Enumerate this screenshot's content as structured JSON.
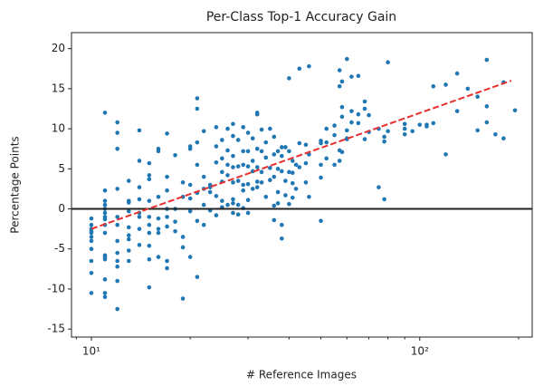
{
  "chart_data": {
    "type": "scatter",
    "title": "Per-Class Top-1 Accuracy Gain",
    "xlabel": "# Reference Images",
    "ylabel": "Percentage Points",
    "xscale": "log",
    "xlim": [
      8.7,
      220
    ],
    "ylim": [
      -16,
      22
    ],
    "xticks": [
      {
        "value": 10,
        "label": "10¹"
      },
      {
        "value": 100,
        "label": "10²"
      }
    ],
    "xminorticks": [
      9,
      20,
      30,
      40,
      50,
      60,
      70,
      80,
      90,
      200
    ],
    "yticks": [
      -15,
      -10,
      -5,
      0,
      5,
      10,
      15,
      20
    ],
    "color": "#1f77b4",
    "hline": {
      "y": 0,
      "color": "#222222"
    },
    "fit_line": {
      "x": [
        10,
        190
      ],
      "y": [
        -2.5,
        16
      ],
      "color": "#e8312f"
    },
    "x": [
      10,
      10,
      10,
      10,
      10,
      10,
      10,
      10,
      10,
      10,
      10,
      11,
      11,
      11,
      11,
      11,
      11,
      11,
      11,
      11,
      11,
      11,
      11,
      11,
      11,
      11,
      11,
      12,
      12,
      12,
      12,
      12,
      12,
      12,
      12,
      12,
      12,
      12,
      12,
      13,
      13,
      13,
      13,
      13,
      13,
      13,
      13,
      13,
      14,
      14,
      14,
      14,
      14,
      14,
      14,
      14,
      15,
      15,
      15,
      15,
      15,
      15,
      15,
      15,
      15,
      15,
      16,
      16,
      16,
      16,
      16,
      16,
      16,
      17,
      17,
      17,
      17,
      17,
      17,
      17,
      17,
      18,
      18,
      18,
      18,
      19,
      19,
      19,
      19,
      19,
      20,
      20,
      20,
      20,
      20,
      20,
      21,
      21,
      21,
      21,
      21,
      21,
      21,
      22,
      22,
      22,
      22,
      22,
      23,
      23,
      23,
      23,
      24,
      24,
      24,
      24,
      24,
      25,
      25,
      25,
      25,
      25,
      25,
      26,
      26,
      26,
      26,
      26,
      27,
      27,
      27,
      27,
      27,
      27,
      27,
      27,
      28,
      28,
      28,
      28,
      28,
      29,
      29,
      29,
      29,
      29,
      29,
      30,
      30,
      30,
      30,
      30,
      30,
      31,
      31,
      31,
      31,
      32,
      32,
      32,
      32,
      32,
      32,
      33,
      33,
      33,
      33,
      34,
      34,
      34,
      35,
      35,
      35,
      36,
      36,
      36,
      36,
      36,
      37,
      37,
      37,
      37,
      38,
      38,
      38,
      38,
      38,
      39,
      39,
      39,
      40,
      40,
      40,
      40,
      41,
      41,
      41,
      41,
      42,
      42,
      43,
      43,
      43,
      45,
      45,
      45,
      46,
      46,
      46,
      50,
      50,
      50,
      50,
      50,
      52,
      52,
      52,
      55,
      55,
      55,
      57,
      57,
      57,
      57,
      58,
      58,
      58,
      58,
      60,
      60,
      60,
      60,
      62,
      62,
      62,
      65,
      65,
      65,
      68,
      68,
      68,
      70,
      70,
      75,
      75,
      78,
      78,
      78,
      80,
      80,
      90,
      90,
      90,
      95,
      100,
      105,
      105,
      110,
      110,
      120,
      120,
      130,
      130,
      140,
      150,
      150,
      160,
      160,
      160,
      170,
      180,
      180,
      195
    ],
    "y": [
      -1.2,
      -2.5,
      -3,
      -3.5,
      -4,
      -5,
      -6.5,
      -8,
      -10.5,
      -2,
      -2.8,
      12,
      2.3,
      1,
      0.5,
      -0.5,
      -1.3,
      -2,
      -3,
      -5.8,
      -6.3,
      -8.8,
      -10.5,
      -11,
      -6,
      0,
      -1,
      9.5,
      7.5,
      2.5,
      -1,
      -2,
      -4,
      -6.5,
      -7.2,
      -9,
      -12.5,
      -5.5,
      10.8,
      3.5,
      1,
      -0.3,
      -2.3,
      -3.3,
      -3.8,
      -5.2,
      -6.5,
      0.8,
      9.8,
      6,
      1.2,
      -0.5,
      -1,
      -2.5,
      -4.5,
      2.7,
      4.2,
      5.7,
      1,
      -1,
      -2,
      -3,
      -4.6,
      -6.3,
      -9.8,
      3.7,
      7.2,
      7.5,
      1.5,
      -1.2,
      -2.5,
      -3,
      -6,
      9.4,
      4,
      2.3,
      0,
      -1,
      -6.5,
      -7.4,
      -2.2,
      6.7,
      -1.6,
      -2.8,
      0,
      3.3,
      -3.5,
      -4.8,
      -11.2,
      1.5,
      7.8,
      7.5,
      3,
      1.3,
      -0.3,
      -6,
      13.8,
      12.5,
      8.3,
      2,
      -1.5,
      -8.5,
      5.5,
      9.7,
      4,
      2.5,
      0.5,
      -2,
      3,
      2.7,
      -0.2,
      2.1,
      10.2,
      7.8,
      5.8,
      1.6,
      -0.8,
      8.6,
      6.3,
      4.6,
      3.4,
      1,
      0.2,
      7.3,
      5.5,
      10,
      4.2,
      0.5,
      10.6,
      9.1,
      6.6,
      5.2,
      3.3,
      1.2,
      0.7,
      -0.5,
      8.6,
      5.3,
      3.5,
      0.5,
      -0.7,
      10.2,
      7.2,
      5.5,
      3,
      2.3,
      0.1,
      9.5,
      7.2,
      5.3,
      3.1,
      1.1,
      -0.5,
      8.8,
      6,
      4.7,
      2.5,
      12,
      11.8,
      7.5,
      5.2,
      3.4,
      2.7,
      9.9,
      7.2,
      4.6,
      3.3,
      8.3,
      6.4,
      1.5,
      10,
      5.1,
      3.6,
      9,
      6.8,
      4,
      0.4,
      -1.4,
      7.2,
      5,
      2.1,
      0.7,
      7.7,
      6.6,
      4.7,
      -2,
      -3.7,
      7.7,
      3.5,
      1.7,
      16.3,
      7.2,
      4.6,
      0.6,
      6,
      4.5,
      3.2,
      1.4,
      5.5,
      2.5,
      17.5,
      8.2,
      5.2,
      8,
      5.7,
      3.3,
      17.8,
      6.8,
      1.5,
      8.5,
      8.2,
      5.5,
      3.9,
      -1.5,
      8.3,
      10,
      6.3,
      10.4,
      9.2,
      5.5,
      17.3,
      15.3,
      7.3,
      6,
      12.7,
      15.9,
      7.1,
      11.5,
      18.7,
      9.8,
      8.8,
      8.7,
      16.5,
      12.2,
      10.8,
      11.8,
      10.7,
      16.6,
      13.4,
      8.7,
      12.5,
      11.7,
      9.6,
      2.7,
      10,
      1.2,
      9,
      8.4,
      18.3,
      9.7,
      9.3,
      10.6,
      10,
      9.7,
      10.5,
      10.5,
      10.3,
      15.3,
      10.7,
      6.8,
      15.5,
      16.9,
      12.2,
      15,
      9.8,
      14,
      18.6,
      10.8,
      12.8,
      9.3,
      8.8,
      15.8,
      12.3
    ]
  }
}
